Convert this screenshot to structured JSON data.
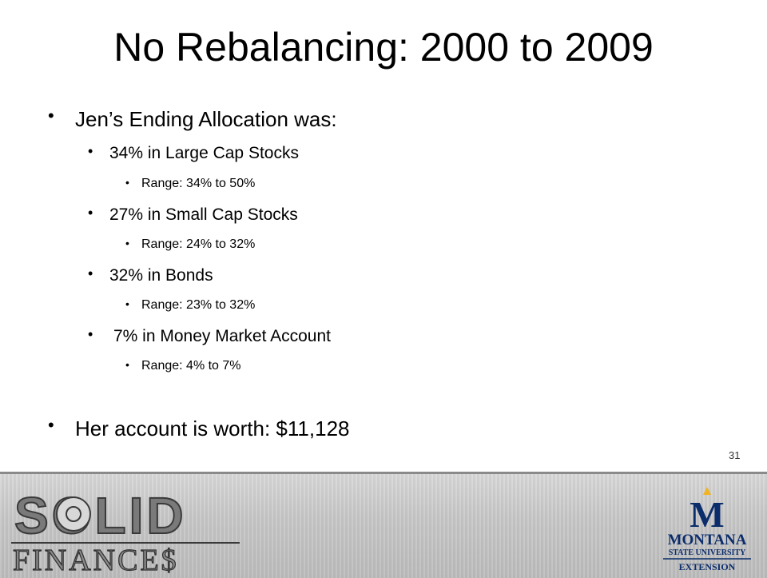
{
  "slide": {
    "title": "No Rebalancing: 2000 to 2009",
    "slide_number": "31"
  },
  "bullets": [
    {
      "level": 1,
      "text": "Jen’s Ending Allocation was:"
    },
    {
      "level": 2,
      "text": "34% in Large Cap Stocks"
    },
    {
      "level": 3,
      "text": "Range: 34% to 50%"
    },
    {
      "level": 2,
      "text": "27% in Small Cap Stocks"
    },
    {
      "level": 3,
      "text": "Range: 24% to 32%"
    },
    {
      "level": 2,
      "text": "32% in Bonds"
    },
    {
      "level": 3,
      "text": "Range: 23% to 32%"
    },
    {
      "level": 2,
      "text": " 7% in Money Market Account"
    },
    {
      "level": 3,
      "text": "Range: 4% to 7%"
    },
    {
      "level": 1,
      "text": "Her account is worth: $11,128"
    }
  ],
  "footer": {
    "logo_left": {
      "word1": "SOLID",
      "word2": "FINANCE$"
    },
    "logo_right": {
      "letter": "M",
      "line1": "MONTANA",
      "line2": "STATE UNIVERSITY",
      "line3": "EXTENSION"
    },
    "colors": {
      "msu_blue": "#0b2d6b",
      "msu_gold": "#f0b323",
      "solid_gray": "#7a7a7a"
    }
  }
}
